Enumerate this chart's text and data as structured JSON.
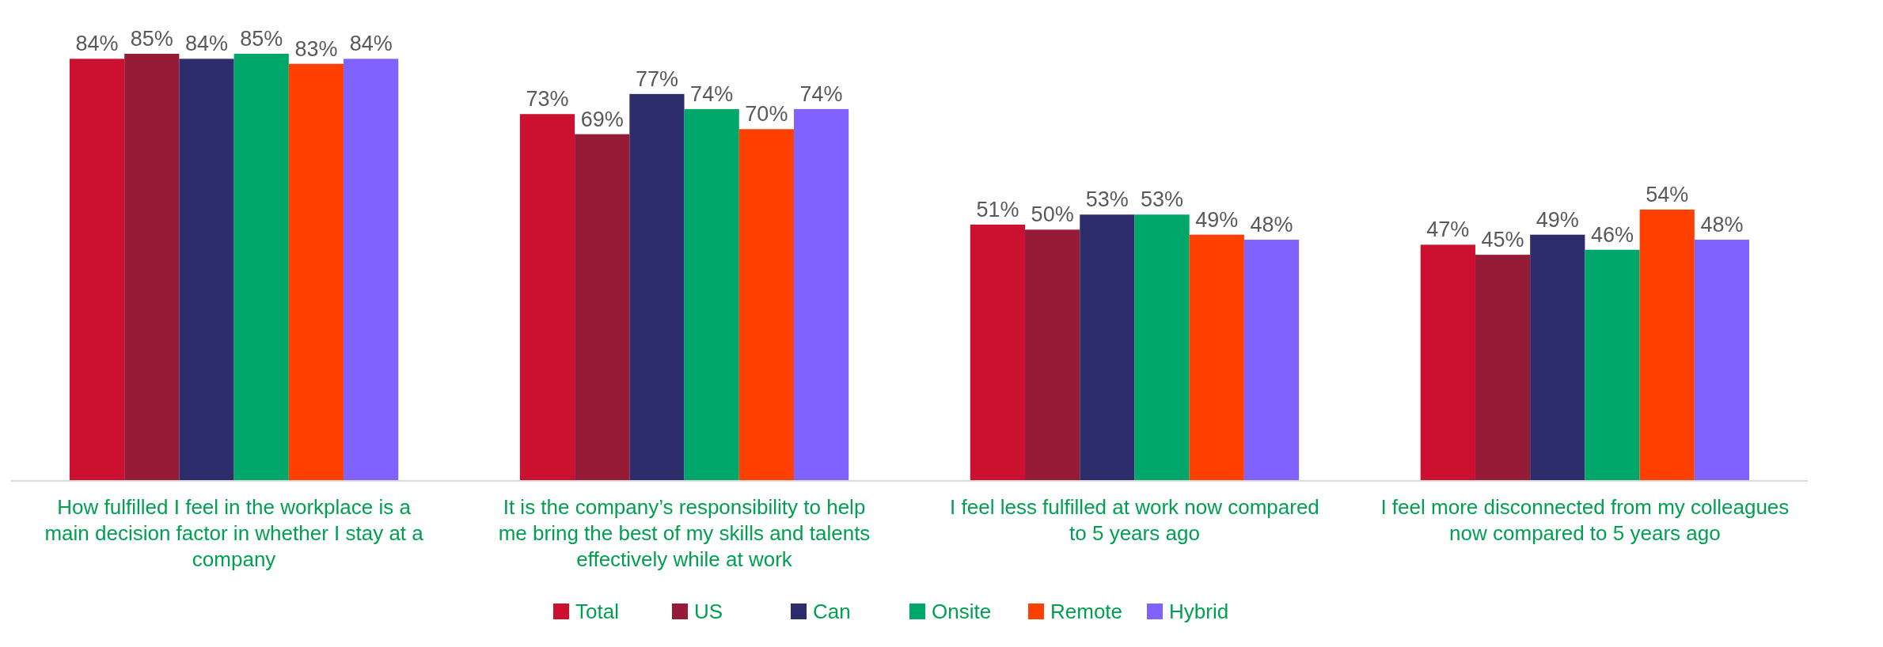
{
  "chart_data": {
    "type": "bar",
    "categories": [
      "How fulfilled I feel in the workplace is a main decision factor in whether I stay at a company",
      "It is the company’s responsibility to help me bring the best of my skills and talents effectively while at work",
      "I feel less fulfilled at work now compared to 5 years ago",
      "I feel more disconnected from my colleagues now compared to 5 years ago"
    ],
    "series": [
      {
        "name": "Total",
        "color": "#cc1030",
        "values": [
          84,
          73,
          51,
          47
        ],
        "value_labels": [
          "84%",
          "73%",
          "51%",
          "47%"
        ]
      },
      {
        "name": "US",
        "color": "#951b37",
        "values": [
          85,
          69,
          50,
          45
        ],
        "value_labels": [
          "85%",
          "69%",
          "50%",
          "45%"
        ]
      },
      {
        "name": "Can",
        "color": "#2e2d6b",
        "values": [
          84,
          77,
          53,
          49
        ],
        "value_labels": [
          "84%",
          "77%",
          "53%",
          "49%"
        ]
      },
      {
        "name": "Onsite",
        "color": "#00a76a",
        "values": [
          85,
          74,
          53,
          46
        ],
        "value_labels": [
          "85%",
          "74%",
          "53%",
          "46%"
        ]
      },
      {
        "name": "Remote",
        "color": "#ff4000",
        "values": [
          83,
          70,
          49,
          54
        ],
        "value_labels": [
          "83%",
          "70%",
          "49%",
          "54%"
        ]
      },
      {
        "name": "Hybrid",
        "color": "#8062fe",
        "values": [
          84,
          74,
          48,
          48
        ],
        "value_labels": [
          "84%",
          "74%",
          "48%",
          "48%"
        ]
      }
    ],
    "legend": "bottom"
  }
}
